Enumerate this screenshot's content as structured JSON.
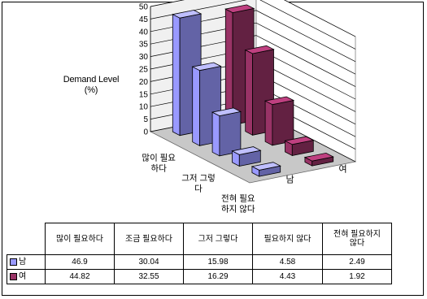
{
  "chart_data": {
    "type": "bar",
    "subtype": "3d-clustered-column",
    "ylabel_lines": [
      "Demand Level",
      "(%)"
    ],
    "ylim": [
      0,
      50
    ],
    "yticks": [
      0,
      5,
      10,
      15,
      20,
      25,
      30,
      35,
      40,
      45,
      50
    ],
    "grid": true,
    "categories": [
      "많이 필요하다",
      "조금 필요하다",
      "그저 그렇다",
      "필요하지 않다",
      "전혀 필요하지 않다"
    ],
    "axis_category_labels": [
      [
        "많이 필요",
        "하다"
      ],
      [
        "그저 그렇",
        "다"
      ],
      [
        "전혀 필요",
        "하지 않다"
      ]
    ],
    "series": [
      {
        "name": "남",
        "values": [
          46.9,
          30.04,
          15.98,
          4.58,
          2.49
        ],
        "color": "#9999ff"
      },
      {
        "name": "여",
        "values": [
          44.82,
          32.55,
          16.29,
          4.43,
          1.92
        ],
        "color": "#993366"
      }
    ],
    "table": {
      "headers": [
        "많이 필요하다",
        "조금 필요하다",
        "그저 그렇다",
        "필요하지 않다",
        "전혀 필요하지\n않다"
      ],
      "rows": [
        {
          "label": "남",
          "values": [
            "46.9",
            "30.04",
            "15.98",
            "4.58",
            "2.49"
          ]
        },
        {
          "label": "여",
          "values": [
            "44.82",
            "32.55",
            "16.29",
            "4.43",
            "1.92"
          ]
        }
      ]
    }
  }
}
